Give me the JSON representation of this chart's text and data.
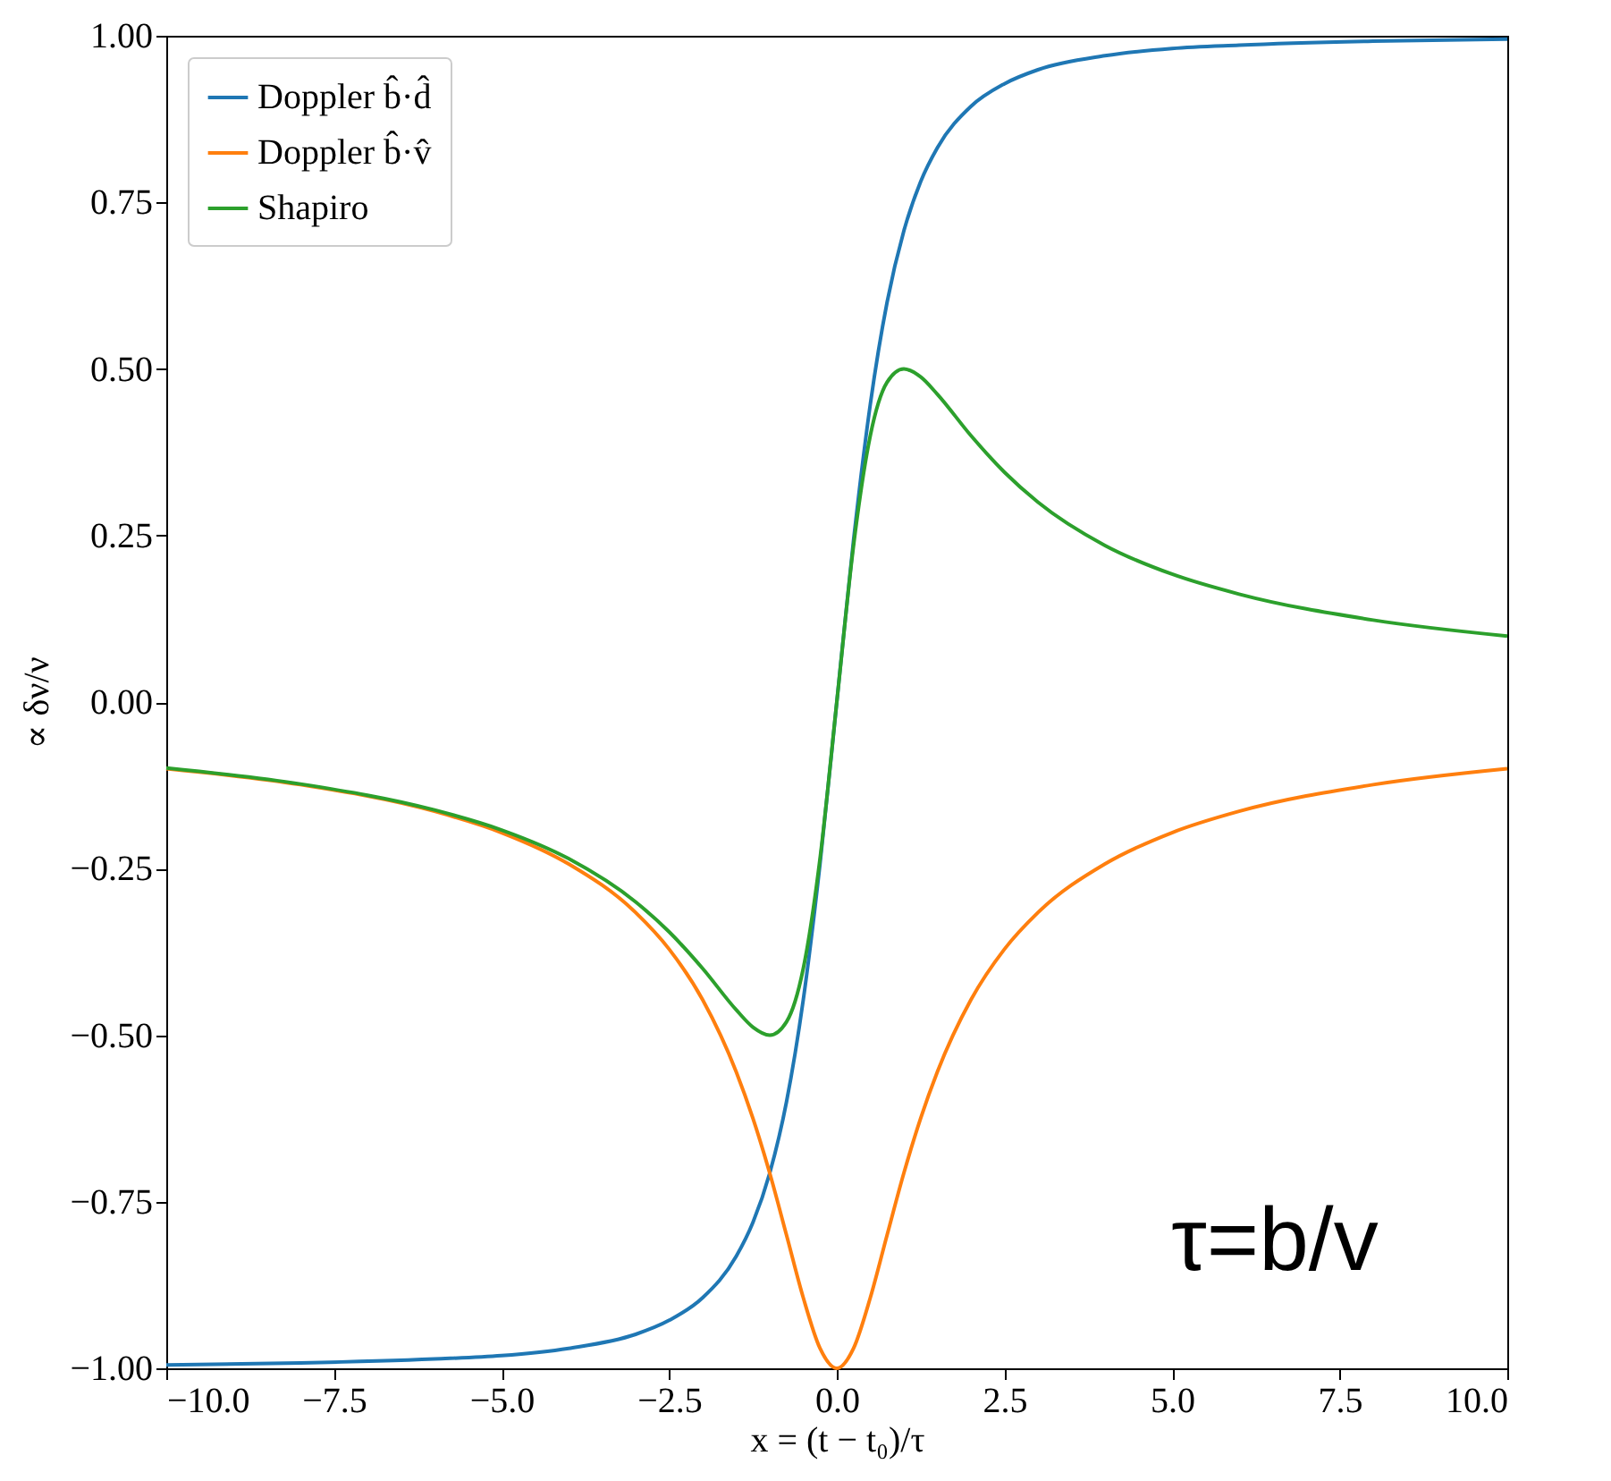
{
  "chart_data": {
    "type": "line",
    "xlabel": "x = (t − t₀)/τ",
    "ylabel": "∝ δν/ν",
    "x": [
      -10,
      -8,
      -6,
      -5,
      -4,
      -3,
      -2.5,
      -2,
      -1.5,
      -1.25,
      -1,
      -0.75,
      -0.5,
      -0.25,
      0,
      0.25,
      0.5,
      0.75,
      1,
      1.25,
      1.5,
      2,
      2.5,
      3,
      4,
      5,
      6,
      8,
      10
    ],
    "series": [
      {
        "name": "Doppler b̂·d̂",
        "color": "#1f77b4",
        "values": [
          -0.995,
          -0.992,
          -0.986,
          -0.981,
          -0.97,
          -0.949,
          -0.928,
          -0.894,
          -0.832,
          -0.781,
          -0.707,
          -0.6,
          -0.447,
          -0.243,
          0,
          0.243,
          0.447,
          0.6,
          0.707,
          0.781,
          0.832,
          0.894,
          0.928,
          0.949,
          0.97,
          0.981,
          0.986,
          0.992,
          0.995
        ]
      },
      {
        "name": "Doppler b̂·v̂",
        "color": "#ff7f0e",
        "values": [
          -0.1,
          -0.124,
          -0.164,
          -0.196,
          -0.243,
          -0.316,
          -0.371,
          -0.447,
          -0.555,
          -0.625,
          -0.707,
          -0.8,
          -0.894,
          -0.97,
          -1.0,
          -0.97,
          -0.894,
          -0.8,
          -0.707,
          -0.625,
          -0.555,
          -0.447,
          -0.371,
          -0.316,
          -0.243,
          -0.196,
          -0.164,
          -0.124,
          -0.1
        ]
      },
      {
        "name": "Shapiro",
        "color": "#2ca02c",
        "values": [
          -0.099,
          -0.123,
          -0.162,
          -0.192,
          -0.235,
          -0.3,
          -0.345,
          -0.4,
          -0.462,
          -0.488,
          -0.5,
          -0.48,
          -0.4,
          -0.235,
          0,
          0.235,
          0.4,
          0.48,
          0.5,
          0.488,
          0.462,
          0.4,
          0.345,
          0.3,
          0.235,
          0.192,
          0.162,
          0.123,
          0.099
        ]
      }
    ],
    "xlim": [
      -10,
      10
    ],
    "xticks": [
      {
        "value": -10,
        "label": "−10.0"
      },
      {
        "value": -7.5,
        "label": "−7.5"
      },
      {
        "value": -5,
        "label": "−5.0"
      },
      {
        "value": -2.5,
        "label": "−2.5"
      },
      {
        "value": 0,
        "label": "0.0"
      },
      {
        "value": 2.5,
        "label": "2.5"
      },
      {
        "value": 5,
        "label": "5.0"
      },
      {
        "value": 7.5,
        "label": "7.5"
      },
      {
        "value": 10,
        "label": "10.0"
      }
    ],
    "ylim": [
      -1,
      1
    ],
    "yticks": [
      {
        "value": -1,
        "label": "−1.00"
      },
      {
        "value": -0.75,
        "label": "−0.75"
      },
      {
        "value": -0.5,
        "label": "−0.50"
      },
      {
        "value": -0.25,
        "label": "−0.25"
      },
      {
        "value": 0,
        "label": "0.00"
      },
      {
        "value": 0.25,
        "label": "0.25"
      },
      {
        "value": 0.5,
        "label": "0.50"
      },
      {
        "value": 0.75,
        "label": "0.75"
      },
      {
        "value": 1,
        "label": "1.00"
      }
    ],
    "annotations": [
      "τ=b/v"
    ],
    "grid": false,
    "legend": "top left",
    "marker": "none",
    "line_style": "solid"
  }
}
